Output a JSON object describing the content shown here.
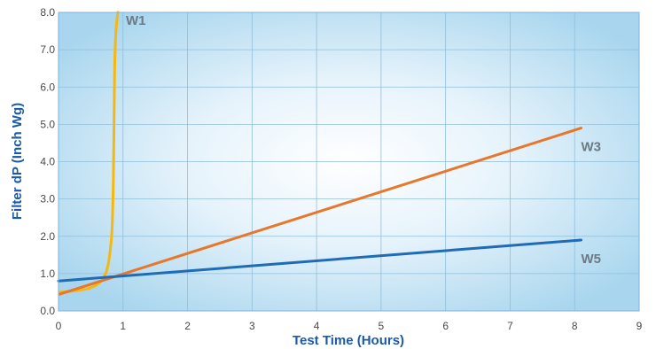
{
  "chart_data": {
    "type": "line",
    "xlabel": "Test Time (Hours)",
    "ylabel": "Filter dP (Inch Wg)",
    "xlim": [
      0,
      9
    ],
    "ylim": [
      0,
      8
    ],
    "x_ticks": [
      "0",
      "1",
      "2",
      "3",
      "4",
      "5",
      "6",
      "7",
      "8",
      "9"
    ],
    "y_ticks": [
      "0.0",
      "1.0",
      "2.0",
      "3.0",
      "4.0",
      "5.0",
      "6.0",
      "7.0",
      "8.0"
    ],
    "grid": true,
    "legend": "inline labels at line ends",
    "series": [
      {
        "name": "W1",
        "color": "#f6b80f",
        "x": [
          0.02,
          0.3,
          0.5,
          0.65,
          0.75,
          0.8,
          0.83,
          0.85,
          0.86,
          0.87,
          0.89,
          0.92
        ],
        "y": [
          0.5,
          0.55,
          0.62,
          0.78,
          1.1,
          1.6,
          2.2,
          3.5,
          5.0,
          6.5,
          7.5,
          8.0
        ]
      },
      {
        "name": "W3",
        "color": "#e8762b",
        "x": [
          0.02,
          8.1
        ],
        "y": [
          0.45,
          4.9
        ]
      },
      {
        "name": "W5",
        "color": "#1f6bb5",
        "x": [
          0.0,
          8.1
        ],
        "y": [
          0.8,
          1.9
        ]
      }
    ]
  }
}
